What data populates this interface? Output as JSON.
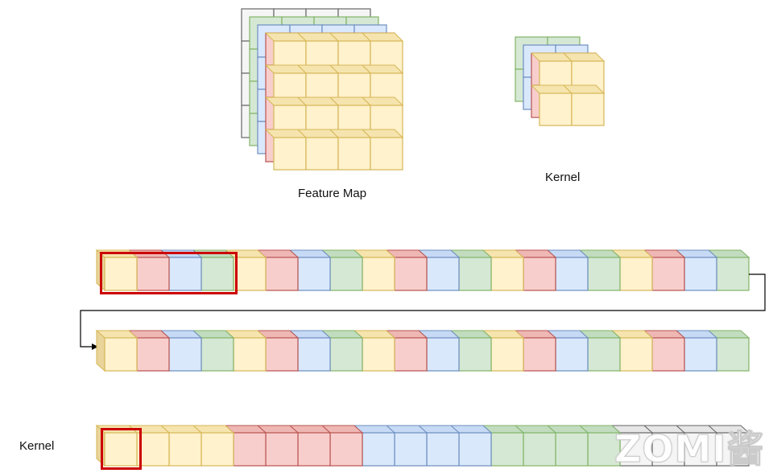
{
  "labels": {
    "feature_map": "Feature Map",
    "kernel_top": "Kernel",
    "kernel_bottom": "Kernel"
  },
  "watermark": "ZOMI酱",
  "colors": {
    "yellow": {
      "fill": "#fff2cc",
      "stroke": "#d6b656",
      "top": "#f5e4ae",
      "side": "#e9d49a"
    },
    "red": {
      "fill": "#f8cecc",
      "stroke": "#b85450",
      "top": "#efb7b4",
      "side": "#e3a19e"
    },
    "blue": {
      "fill": "#dae8fc",
      "stroke": "#6c8ebf",
      "top": "#c7daf5",
      "side": "#b3c9ea"
    },
    "green": {
      "fill": "#d5e8d4",
      "stroke": "#82b366",
      "top": "#c1dcbf",
      "side": "#adcfaa"
    },
    "gray": {
      "fill": "#f5f5f5",
      "stroke": "#666666",
      "top": "#e6e6e6",
      "side": "#d4d4d4"
    },
    "highlight": "#cc0000"
  },
  "feature_map": {
    "grid": 4,
    "channels": [
      "gray",
      "green",
      "blue",
      "red",
      "yellow"
    ]
  },
  "kernel": {
    "grid": 2,
    "channels": [
      "green",
      "blue",
      "red",
      "yellow"
    ]
  },
  "rows": {
    "row1": {
      "cells": [
        "yellow",
        "red",
        "blue",
        "green",
        "yellow",
        "red",
        "blue",
        "green",
        "yellow",
        "red",
        "blue",
        "green",
        "yellow",
        "red",
        "blue",
        "green",
        "yellow",
        "red",
        "blue",
        "green"
      ],
      "highlight_count": 4
    },
    "row2": {
      "cells": [
        "yellow",
        "red",
        "blue",
        "green",
        "yellow",
        "red",
        "blue",
        "green",
        "yellow",
        "red",
        "blue",
        "green",
        "yellow",
        "red",
        "blue",
        "green",
        "yellow",
        "red",
        "blue",
        "green"
      ]
    },
    "row3": {
      "cells": [
        "yellow",
        "yellow",
        "yellow",
        "yellow",
        "red",
        "red",
        "red",
        "red",
        "blue",
        "blue",
        "blue",
        "blue",
        "green",
        "green",
        "green",
        "green",
        "gray",
        "gray",
        "gray",
        "gray"
      ],
      "highlight_count": 1
    }
  }
}
